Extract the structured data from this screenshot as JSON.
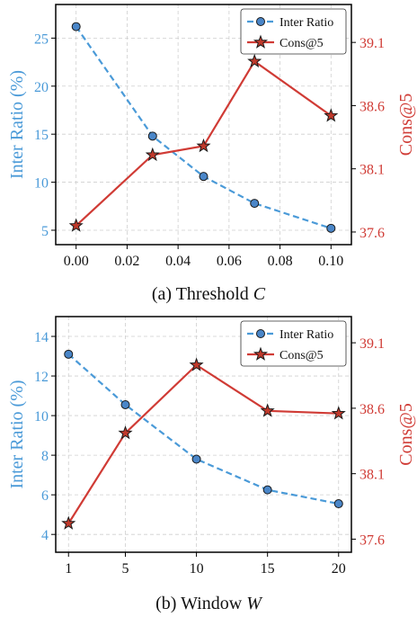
{
  "colors": {
    "left": "#4a9ad8",
    "right": "#d03b35",
    "marker_left": "#4a86c8",
    "marker_right": "#c0392b",
    "grid": "#cfcfcf"
  },
  "chart_data": [
    {
      "type": "line",
      "caption_prefix": "(a) Threshold",
      "caption_var": "C",
      "x": [
        0.0,
        0.03,
        0.05,
        0.07,
        0.1
      ],
      "xticks": [
        "0.00",
        "0.02",
        "0.04",
        "0.06",
        "0.08",
        "0.10"
      ],
      "xtick_values": [
        0.0,
        0.02,
        0.04,
        0.06,
        0.08,
        0.1
      ],
      "xlim": [
        -0.008,
        0.108
      ],
      "ylabel_left": "Inter Ratio (%)",
      "ylabel_right": "Cons@5",
      "ylim_left": [
        3.5,
        28.5
      ],
      "yticks_left": [
        "5",
        "10",
        "15",
        "20",
        "25"
      ],
      "ytick_left_values": [
        5,
        10,
        15,
        20,
        25
      ],
      "ylim_right": [
        37.5,
        39.4
      ],
      "yticks_right": [
        "37.6",
        "38.1",
        "38.6",
        "39.1"
      ],
      "ytick_right_values": [
        37.6,
        38.1,
        38.6,
        39.1
      ],
      "legend_position": "top-right",
      "grid": true,
      "series": [
        {
          "name": "Inter Ratio",
          "axis": "left",
          "style": "dashed-circle",
          "values": [
            26.2,
            14.8,
            10.6,
            7.8,
            5.2
          ]
        },
        {
          "name": "Cons@5",
          "axis": "right",
          "style": "solid-star",
          "values": [
            37.65,
            38.21,
            38.28,
            38.95,
            38.52
          ]
        }
      ]
    },
    {
      "type": "line",
      "caption_prefix": "(b) Window",
      "caption_var": "W",
      "x": [
        1,
        5,
        10,
        15,
        20
      ],
      "xticks": [
        "1",
        "5",
        "10",
        "15",
        "20"
      ],
      "xtick_values": [
        1,
        5,
        10,
        15,
        20
      ],
      "xlim": [
        0.1,
        20.9
      ],
      "ylabel_left": "Inter Ratio (%)",
      "ylabel_right": "Cons@5",
      "ylim_left": [
        3.1,
        15.0
      ],
      "yticks_left": [
        "4",
        "6",
        "8",
        "10",
        "12",
        "14"
      ],
      "ytick_left_values": [
        4,
        6,
        8,
        10,
        12,
        14
      ],
      "ylim_right": [
        37.5,
        39.3
      ],
      "yticks_right": [
        "37.6",
        "38.1",
        "38.6",
        "39.1"
      ],
      "ytick_right_values": [
        37.6,
        38.1,
        38.6,
        39.1
      ],
      "legend_position": "top-right",
      "grid": true,
      "series": [
        {
          "name": "Inter Ratio",
          "axis": "left",
          "style": "dashed-circle",
          "values": [
            13.1,
            10.55,
            7.8,
            6.25,
            5.55
          ]
        },
        {
          "name": "Cons@5",
          "axis": "right",
          "style": "solid-star",
          "values": [
            37.72,
            38.41,
            38.93,
            38.58,
            38.56
          ]
        }
      ]
    }
  ]
}
